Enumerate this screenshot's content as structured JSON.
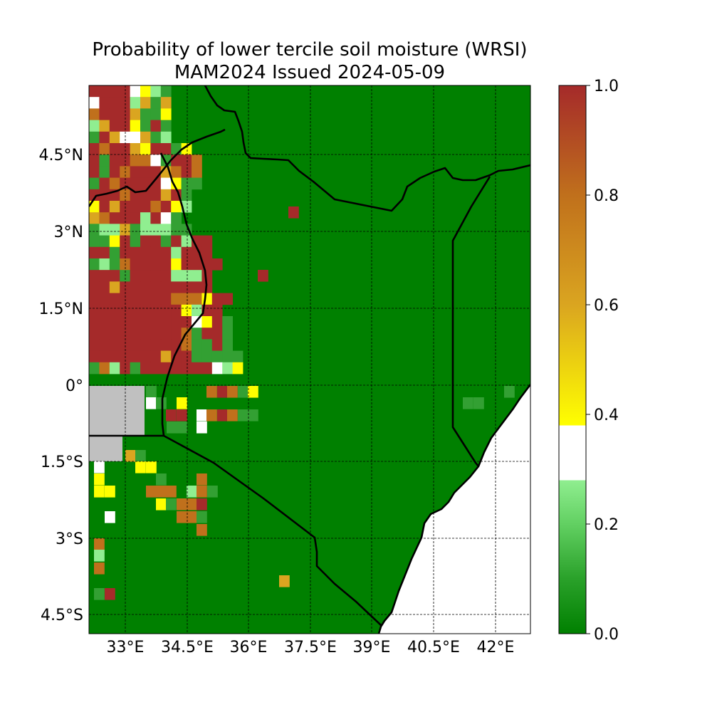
{
  "title": {
    "line1": "Probability of lower tercile soil moisture (WRSI)",
    "line2": "MAM2024 Issued 2024-05-09"
  },
  "map": {
    "lon_ticks": [
      "33°E",
      "34.5°E",
      "36°E",
      "37.5°E",
      "39°E",
      "40.5°E",
      "42°E"
    ],
    "lat_ticks": [
      "4.5°N",
      "3°N",
      "1.5°N",
      "0°",
      "1.5°S",
      "3°S",
      "4.5°S"
    ],
    "lon_range": [
      32.1,
      42.8
    ],
    "lat_range": [
      -4.9,
      5.75
    ],
    "gridlines": true,
    "background_fill": "green (probability 0.0 over most of Kenya)",
    "legend_placement": "right (colorbar)"
  },
  "colorbar": {
    "ticks": [
      "0.0",
      "0.2",
      "0.4",
      "0.6",
      "0.8",
      "1.0"
    ],
    "range": [
      0.0,
      1.0
    ],
    "stops": [
      {
        "value": 0.0,
        "color": "#008000"
      },
      {
        "value": 0.1,
        "color": "#2aa12a"
      },
      {
        "value": 0.2,
        "color": "#62d062"
      },
      {
        "value": 0.28,
        "color": "#90ee90"
      },
      {
        "value": 0.28,
        "color": "#ffffff"
      },
      {
        "value": 0.38,
        "color": "#ffffff"
      },
      {
        "value": 0.38,
        "color": "#ffff00"
      },
      {
        "value": 0.6,
        "color": "#daa520"
      },
      {
        "value": 0.8,
        "color": "#c0701c"
      },
      {
        "value": 1.0,
        "color": "#a52a2a"
      }
    ]
  },
  "colors": {
    "dark_green": "#008000",
    "light_green": "#90ee90",
    "mid_green": "#33a033",
    "yellow": "#ffff00",
    "gold": "#daa520",
    "orange_brown": "#c0701c",
    "brown_red": "#a52a2a",
    "no_data_gray": "#c0c0c0",
    "ocean_white": "#ffffff",
    "border_black": "#000000"
  }
}
